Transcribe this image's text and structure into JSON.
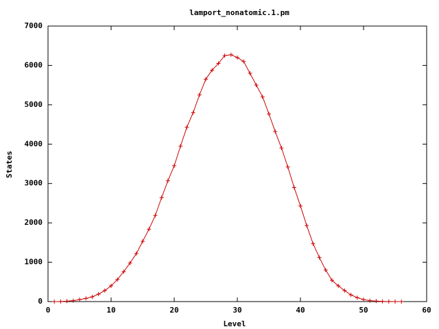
{
  "chart_data": {
    "type": "line",
    "title": "lamport_nonatomic.1.pm",
    "x_label": "Level",
    "y_label": "States",
    "x": [
      1,
      2,
      3,
      4,
      5,
      6,
      7,
      8,
      9,
      10,
      11,
      12,
      13,
      14,
      15,
      16,
      17,
      18,
      19,
      20,
      21,
      22,
      23,
      24,
      25,
      26,
      27,
      28,
      29,
      30,
      31,
      32,
      33,
      34,
      35,
      36,
      37,
      38,
      39,
      40,
      41,
      42,
      43,
      44,
      45,
      46,
      47,
      48,
      49,
      50,
      51,
      52,
      53,
      54,
      55,
      56
    ],
    "series": [
      {
        "color": "#cc0000",
        "values": [
          0,
          2,
          10,
          25,
          50,
          80,
          120,
          190,
          280,
          400,
          560,
          760,
          980,
          1220,
          1530,
          1840,
          2190,
          2640,
          3070,
          3450,
          3950,
          4430,
          4800,
          5250,
          5650,
          5880,
          6050,
          6250,
          6270,
          6200,
          6100,
          5800,
          5500,
          5200,
          4770,
          4320,
          3900,
          3420,
          2900,
          2430,
          1930,
          1470,
          1120,
          800,
          540,
          400,
          280,
          170,
          100,
          50,
          25,
          12,
          5,
          2,
          1,
          0
        ]
      }
    ],
    "xlim": [
      0,
      60
    ],
    "xticks": [
      0,
      10,
      20,
      30,
      40,
      50,
      60
    ],
    "ylim": [
      0,
      7000
    ],
    "yticks": [
      0,
      1000,
      2000,
      3000,
      4000,
      5000,
      6000,
      7000
    ]
  }
}
